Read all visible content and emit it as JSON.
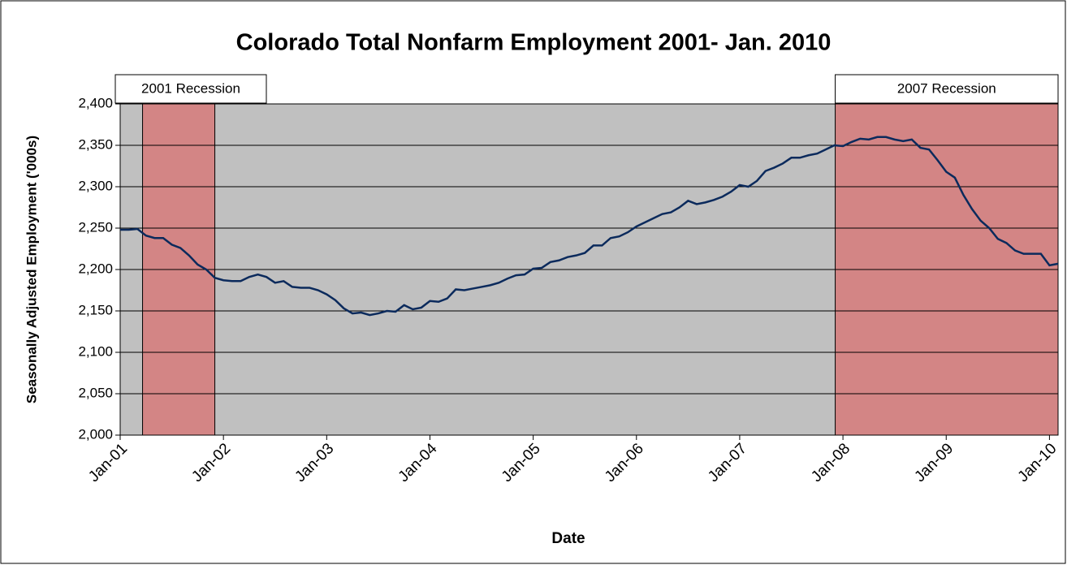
{
  "chart_data": {
    "type": "line",
    "title": "Colorado Total Nonfarm Employment 2001- Jan. 2010",
    "x_label": "Date",
    "y_label": "Seasonally Adjusted Employment ('000s)",
    "categories": [
      "Jan-01",
      null,
      null,
      null,
      null,
      null,
      null,
      null,
      null,
      null,
      null,
      null,
      "Jan-02",
      null,
      null,
      null,
      null,
      null,
      null,
      null,
      null,
      null,
      null,
      null,
      "Jan-03",
      null,
      null,
      null,
      null,
      null,
      null,
      null,
      null,
      null,
      null,
      null,
      "Jan-04",
      null,
      null,
      null,
      null,
      null,
      null,
      null,
      null,
      null,
      null,
      null,
      "Jan-05",
      null,
      null,
      null,
      null,
      null,
      null,
      null,
      null,
      null,
      null,
      null,
      "Jan-06",
      null,
      null,
      null,
      null,
      null,
      null,
      null,
      null,
      null,
      null,
      null,
      "Jan-07",
      null,
      null,
      null,
      null,
      null,
      null,
      null,
      null,
      null,
      null,
      null,
      "Jan-08",
      null,
      null,
      null,
      null,
      null,
      null,
      null,
      null,
      null,
      null,
      null,
      "Jan-09",
      null,
      null,
      null,
      null,
      null,
      null,
      null,
      null,
      null,
      null,
      null,
      "Jan-10",
      null
    ],
    "series": [
      {
        "name": "Total Nonfarm Employment",
        "color": "#0b2a5c",
        "values": [
          2248,
          2248,
          2249,
          2241,
          2238,
          2238,
          2230,
          2226,
          2217,
          2206,
          2200,
          2190,
          2187,
          2186,
          2186,
          2191,
          2194,
          2191,
          2184,
          2186,
          2179,
          2178,
          2178,
          2175,
          2170,
          2163,
          2153,
          2147,
          2148,
          2145,
          2147,
          2150,
          2149,
          2157,
          2152,
          2154,
          2162,
          2161,
          2165,
          2176,
          2175,
          2177,
          2179,
          2181,
          2184,
          2189,
          2193,
          2194,
          2201,
          2202,
          2209,
          2211,
          2215,
          2217,
          2220,
          2229,
          2229,
          2238,
          2240,
          2245,
          2252,
          2257,
          2262,
          2267,
          2269,
          2275,
          2283,
          2279,
          2281,
          2284,
          2288,
          2294,
          2302,
          2300,
          2307,
          2319,
          2323,
          2328,
          2335,
          2335,
          2338,
          2340,
          2345,
          2350,
          2349,
          2354,
          2358,
          2357,
          2360,
          2360,
          2357,
          2355,
          2357,
          2347,
          2345,
          2332,
          2318,
          2311,
          2290,
          2273,
          2259,
          2250,
          2237,
          2232,
          2223,
          2219,
          2219,
          2219,
          2205,
          2207
        ]
      }
    ],
    "recessions": [
      {
        "label": "2001 Recession",
        "start": 2.6,
        "end": 11
      },
      {
        "label": "2007 Recession",
        "start": 83.1,
        "end": 109
      }
    ],
    "recession_color": "#d38585",
    "plot_color": "#c0c0c0",
    "ylim": [
      2000,
      2400
    ],
    "yticks": [
      {
        "value": 2000,
        "label": "2,000"
      },
      {
        "value": 2050,
        "label": "2,050"
      },
      {
        "value": 2100,
        "label": "2,100"
      },
      {
        "value": 2150,
        "label": "2,150"
      },
      {
        "value": 2200,
        "label": "2,200"
      },
      {
        "value": 2250,
        "label": "2,250"
      },
      {
        "value": 2300,
        "label": "2,300"
      },
      {
        "value": 2350,
        "label": "2,350"
      },
      {
        "value": 2400,
        "label": "2,400"
      }
    ],
    "grid": true
  }
}
